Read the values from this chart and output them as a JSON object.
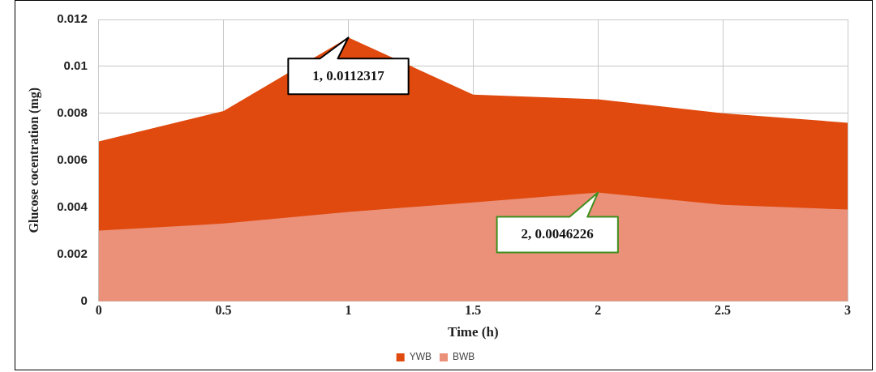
{
  "chart_data": {
    "type": "area",
    "x": [
      0,
      0.5,
      1,
      1.5,
      2,
      2.5,
      3
    ],
    "series": [
      {
        "name": "YWB",
        "color": "#e04a0e",
        "values": [
          0.0068,
          0.0081,
          0.0112317,
          0.0088,
          0.0086,
          0.008,
          0.0076
        ]
      },
      {
        "name": "BWB",
        "color": "#eb9079",
        "values": [
          0.003,
          0.0033,
          0.0038,
          0.0042,
          0.0046226,
          0.0041,
          0.0039
        ]
      }
    ],
    "xlabel": "Time (h)",
    "ylabel": "Glucose cocentration (mg)",
    "xlim": [
      0,
      3
    ],
    "xticks": [
      0,
      0.5,
      1,
      1.5,
      2,
      2.5,
      3
    ],
    "ylim": [
      0,
      0.012
    ],
    "yticks": [
      0,
      0.002,
      0.004,
      0.006,
      0.008,
      0.01,
      0.012
    ],
    "annotations": [
      {
        "text": "1, 0.0112317",
        "x": 1,
        "y": 0.0112317
      },
      {
        "text": "2, 0.0046226",
        "x": 2,
        "y": 0.0046226
      }
    ],
    "grid": true,
    "legend": "bottom"
  }
}
